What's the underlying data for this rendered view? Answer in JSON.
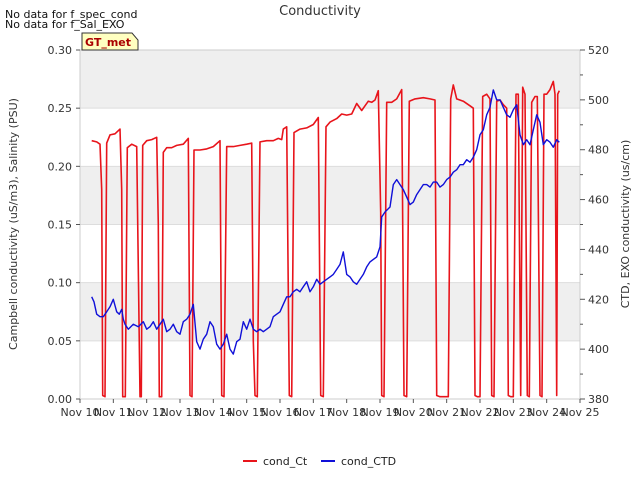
{
  "chart_data": {
    "type": "line",
    "title": "Conductivity",
    "notes": [
      "No data for f_spec_cond",
      "No data for f_Sal_EXO"
    ],
    "badge": "GT_met",
    "x_label": "",
    "x_ticks": [
      "Nov 10",
      "Nov 11",
      "Nov 12",
      "Nov 13",
      "Nov 14",
      "Nov 15",
      "Nov 16",
      "Nov 17",
      "Nov 18",
      "Nov 19",
      "Nov 20",
      "Nov 21",
      "Nov 22",
      "Nov 23",
      "Nov 24",
      "Nov 25"
    ],
    "x_range": [
      10,
      25
    ],
    "y_left": {
      "label": "Campbell conductivity (uS/m3), Salinity (PSU)",
      "range": [
        0.0,
        0.3
      ],
      "ticks": [
        "0.00",
        "0.05",
        "0.10",
        "0.15",
        "0.20",
        "0.25",
        "0.30"
      ]
    },
    "y_right": {
      "label": "CTD, EXO conductivity (us/cm)",
      "range": [
        380,
        520
      ],
      "ticks": [
        "380",
        "400",
        "420",
        "440",
        "460",
        "480",
        "500",
        "520"
      ]
    },
    "legend": {
      "position": "bottom-center"
    },
    "series": [
      {
        "name": "cond_Ct",
        "axis": "left",
        "color": "#e8141b",
        "points": [
          [
            10.35,
            0.222
          ],
          [
            10.5,
            0.221
          ],
          [
            10.6,
            0.219
          ],
          [
            10.65,
            0.18
          ],
          [
            10.68,
            0.003
          ],
          [
            10.75,
            0.002
          ],
          [
            10.8,
            0.22
          ],
          [
            10.9,
            0.227
          ],
          [
            11.05,
            0.228
          ],
          [
            11.2,
            0.232
          ],
          [
            11.25,
            0.18
          ],
          [
            11.28,
            0.002
          ],
          [
            11.36,
            0.002
          ],
          [
            11.42,
            0.216
          ],
          [
            11.55,
            0.219
          ],
          [
            11.7,
            0.217
          ],
          [
            11.8,
            0.002
          ],
          [
            11.84,
            0.002
          ],
          [
            11.88,
            0.218
          ],
          [
            12.0,
            0.222
          ],
          [
            12.15,
            0.223
          ],
          [
            12.3,
            0.225
          ],
          [
            12.35,
            0.15
          ],
          [
            12.38,
            0.002
          ],
          [
            12.45,
            0.002
          ],
          [
            12.5,
            0.212
          ],
          [
            12.6,
            0.216
          ],
          [
            12.75,
            0.216
          ],
          [
            12.9,
            0.218
          ],
          [
            13.1,
            0.219
          ],
          [
            13.25,
            0.224
          ],
          [
            13.3,
            0.003
          ],
          [
            13.36,
            0.002
          ],
          [
            13.42,
            0.214
          ],
          [
            13.6,
            0.214
          ],
          [
            13.8,
            0.215
          ],
          [
            14.0,
            0.217
          ],
          [
            14.2,
            0.222
          ],
          [
            14.25,
            0.003
          ],
          [
            14.32,
            0.002
          ],
          [
            14.4,
            0.217
          ],
          [
            14.6,
            0.217
          ],
          [
            14.8,
            0.218
          ],
          [
            15.0,
            0.219
          ],
          [
            15.15,
            0.22
          ],
          [
            15.2,
            0.05
          ],
          [
            15.25,
            0.003
          ],
          [
            15.32,
            0.002
          ],
          [
            15.4,
            0.221
          ],
          [
            15.6,
            0.222
          ],
          [
            15.8,
            0.222
          ],
          [
            15.95,
            0.224
          ],
          [
            16.05,
            0.223
          ],
          [
            16.1,
            0.232
          ],
          [
            16.2,
            0.234
          ],
          [
            16.28,
            0.003
          ],
          [
            16.35,
            0.002
          ],
          [
            16.42,
            0.229
          ],
          [
            16.6,
            0.232
          ],
          [
            16.8,
            0.233
          ],
          [
            17.0,
            0.236
          ],
          [
            17.15,
            0.242
          ],
          [
            17.22,
            0.003
          ],
          [
            17.3,
            0.002
          ],
          [
            17.38,
            0.234
          ],
          [
            17.5,
            0.238
          ],
          [
            17.7,
            0.241
          ],
          [
            17.85,
            0.245
          ],
          [
            18.0,
            0.244
          ],
          [
            18.15,
            0.245
          ],
          [
            18.3,
            0.254
          ],
          [
            18.45,
            0.248
          ],
          [
            18.55,
            0.252
          ],
          [
            18.65,
            0.256
          ],
          [
            18.75,
            0.255
          ],
          [
            18.85,
            0.257
          ],
          [
            18.95,
            0.265
          ],
          [
            19.02,
            0.16
          ],
          [
            19.05,
            0.003
          ],
          [
            19.12,
            0.002
          ],
          [
            19.2,
            0.255
          ],
          [
            19.35,
            0.255
          ],
          [
            19.5,
            0.258
          ],
          [
            19.65,
            0.266
          ],
          [
            19.72,
            0.003
          ],
          [
            19.8,
            0.002
          ],
          [
            19.88,
            0.256
          ],
          [
            20.05,
            0.258
          ],
          [
            20.3,
            0.259
          ],
          [
            20.5,
            0.258
          ],
          [
            20.65,
            0.257
          ],
          [
            20.7,
            0.003
          ],
          [
            20.8,
            0.002
          ],
          [
            20.95,
            0.002
          ],
          [
            21.05,
            0.002
          ],
          [
            21.12,
            0.258
          ],
          [
            21.2,
            0.27
          ],
          [
            21.3,
            0.258
          ],
          [
            21.5,
            0.256
          ],
          [
            21.7,
            0.252
          ],
          [
            21.8,
            0.25
          ],
          [
            21.85,
            0.003
          ],
          [
            21.92,
            0.002
          ],
          [
            22.0,
            0.002
          ],
          [
            22.08,
            0.26
          ],
          [
            22.2,
            0.262
          ],
          [
            22.3,
            0.258
          ],
          [
            22.35,
            0.003
          ],
          [
            22.42,
            0.002
          ],
          [
            22.5,
            0.256
          ],
          [
            22.6,
            0.257
          ],
          [
            22.7,
            0.253
          ],
          [
            22.8,
            0.25
          ],
          [
            22.85,
            0.003
          ],
          [
            22.92,
            0.002
          ],
          [
            23.0,
            0.002
          ],
          [
            23.08,
            0.262
          ],
          [
            23.15,
            0.262
          ],
          [
            23.22,
            0.003
          ],
          [
            23.28,
            0.268
          ],
          [
            23.35,
            0.262
          ],
          [
            23.42,
            0.003
          ],
          [
            23.48,
            0.002
          ],
          [
            23.55,
            0.255
          ],
          [
            23.65,
            0.26
          ],
          [
            23.72,
            0.26
          ],
          [
            23.8,
            0.003
          ],
          [
            23.86,
            0.002
          ],
          [
            23.92,
            0.262
          ],
          [
            24.0,
            0.262
          ],
          [
            24.1,
            0.266
          ],
          [
            24.2,
            0.273
          ],
          [
            24.25,
            0.262
          ],
          [
            24.3,
            0.003
          ],
          [
            24.33,
            0.262
          ],
          [
            24.38,
            0.265
          ]
        ]
      },
      {
        "name": "cond_CTD",
        "axis": "right",
        "color": "#1010d8",
        "points": [
          [
            10.35,
            421
          ],
          [
            10.42,
            419
          ],
          [
            10.5,
            414
          ],
          [
            10.6,
            413
          ],
          [
            10.7,
            413
          ],
          [
            10.8,
            415
          ],
          [
            10.9,
            417
          ],
          [
            11.0,
            420
          ],
          [
            11.1,
            415
          ],
          [
            11.18,
            414
          ],
          [
            11.25,
            416
          ],
          [
            11.3,
            412
          ],
          [
            11.35,
            410
          ],
          [
            11.45,
            408
          ],
          [
            11.6,
            410
          ],
          [
            11.75,
            409
          ],
          [
            11.9,
            411
          ],
          [
            12.0,
            408
          ],
          [
            12.1,
            409
          ],
          [
            12.2,
            411
          ],
          [
            12.3,
            408
          ],
          [
            12.4,
            410
          ],
          [
            12.5,
            412
          ],
          [
            12.6,
            407
          ],
          [
            12.7,
            408
          ],
          [
            12.8,
            410
          ],
          [
            12.9,
            407
          ],
          [
            13.0,
            406
          ],
          [
            13.1,
            411
          ],
          [
            13.2,
            412
          ],
          [
            13.3,
            414
          ],
          [
            13.4,
            418
          ],
          [
            13.5,
            403
          ],
          [
            13.6,
            400
          ],
          [
            13.7,
            404
          ],
          [
            13.8,
            406
          ],
          [
            13.9,
            411
          ],
          [
            14.0,
            409
          ],
          [
            14.1,
            402
          ],
          [
            14.2,
            400
          ],
          [
            14.3,
            402
          ],
          [
            14.4,
            406
          ],
          [
            14.5,
            400
          ],
          [
            14.6,
            398
          ],
          [
            14.7,
            403
          ],
          [
            14.8,
            404
          ],
          [
            14.9,
            411
          ],
          [
            15.0,
            408
          ],
          [
            15.1,
            412
          ],
          [
            15.2,
            408
          ],
          [
            15.3,
            407
          ],
          [
            15.4,
            408
          ],
          [
            15.5,
            407
          ],
          [
            15.6,
            408
          ],
          [
            15.7,
            409
          ],
          [
            15.8,
            413
          ],
          [
            15.9,
            414
          ],
          [
            16.0,
            415
          ],
          [
            16.1,
            418
          ],
          [
            16.2,
            421
          ],
          [
            16.3,
            421
          ],
          [
            16.4,
            423
          ],
          [
            16.5,
            424
          ],
          [
            16.6,
            423
          ],
          [
            16.7,
            425
          ],
          [
            16.8,
            427
          ],
          [
            16.9,
            423
          ],
          [
            17.0,
            425
          ],
          [
            17.1,
            428
          ],
          [
            17.2,
            426
          ],
          [
            17.3,
            427
          ],
          [
            17.4,
            428
          ],
          [
            17.5,
            429
          ],
          [
            17.6,
            430
          ],
          [
            17.7,
            432
          ],
          [
            17.8,
            434
          ],
          [
            17.9,
            439
          ],
          [
            18.0,
            430
          ],
          [
            18.1,
            429
          ],
          [
            18.2,
            427
          ],
          [
            18.3,
            426
          ],
          [
            18.4,
            428
          ],
          [
            18.5,
            430
          ],
          [
            18.6,
            433
          ],
          [
            18.7,
            435
          ],
          [
            18.8,
            436
          ],
          [
            18.9,
            437
          ],
          [
            19.0,
            441
          ],
          [
            19.05,
            453
          ],
          [
            19.15,
            455
          ],
          [
            19.3,
            457
          ],
          [
            19.4,
            466
          ],
          [
            19.5,
            468
          ],
          [
            19.6,
            466
          ],
          [
            19.7,
            464
          ],
          [
            19.8,
            461
          ],
          [
            19.9,
            458
          ],
          [
            20.0,
            459
          ],
          [
            20.1,
            462
          ],
          [
            20.2,
            464
          ],
          [
            20.3,
            466
          ],
          [
            20.4,
            466
          ],
          [
            20.5,
            465
          ],
          [
            20.6,
            467
          ],
          [
            20.7,
            467
          ],
          [
            20.8,
            465
          ],
          [
            20.9,
            466
          ],
          [
            21.0,
            468
          ],
          [
            21.1,
            469
          ],
          [
            21.2,
            471
          ],
          [
            21.3,
            472
          ],
          [
            21.4,
            474
          ],
          [
            21.5,
            474
          ],
          [
            21.6,
            476
          ],
          [
            21.7,
            475
          ],
          [
            21.8,
            477
          ],
          [
            21.9,
            480
          ],
          [
            22.0,
            486
          ],
          [
            22.1,
            488
          ],
          [
            22.2,
            494
          ],
          [
            22.3,
            497
          ],
          [
            22.4,
            504
          ],
          [
            22.5,
            500
          ],
          [
            22.6,
            500
          ],
          [
            22.7,
            497
          ],
          [
            22.8,
            494
          ],
          [
            22.9,
            493
          ],
          [
            23.0,
            496
          ],
          [
            23.1,
            498
          ],
          [
            23.2,
            486
          ],
          [
            23.3,
            482
          ],
          [
            23.4,
            484
          ],
          [
            23.5,
            482
          ],
          [
            23.6,
            488
          ],
          [
            23.7,
            494
          ],
          [
            23.8,
            491
          ],
          [
            23.9,
            482
          ],
          [
            24.0,
            484
          ],
          [
            24.1,
            483
          ],
          [
            24.2,
            481
          ],
          [
            24.3,
            484
          ],
          [
            24.38,
            483
          ]
        ]
      }
    ]
  }
}
